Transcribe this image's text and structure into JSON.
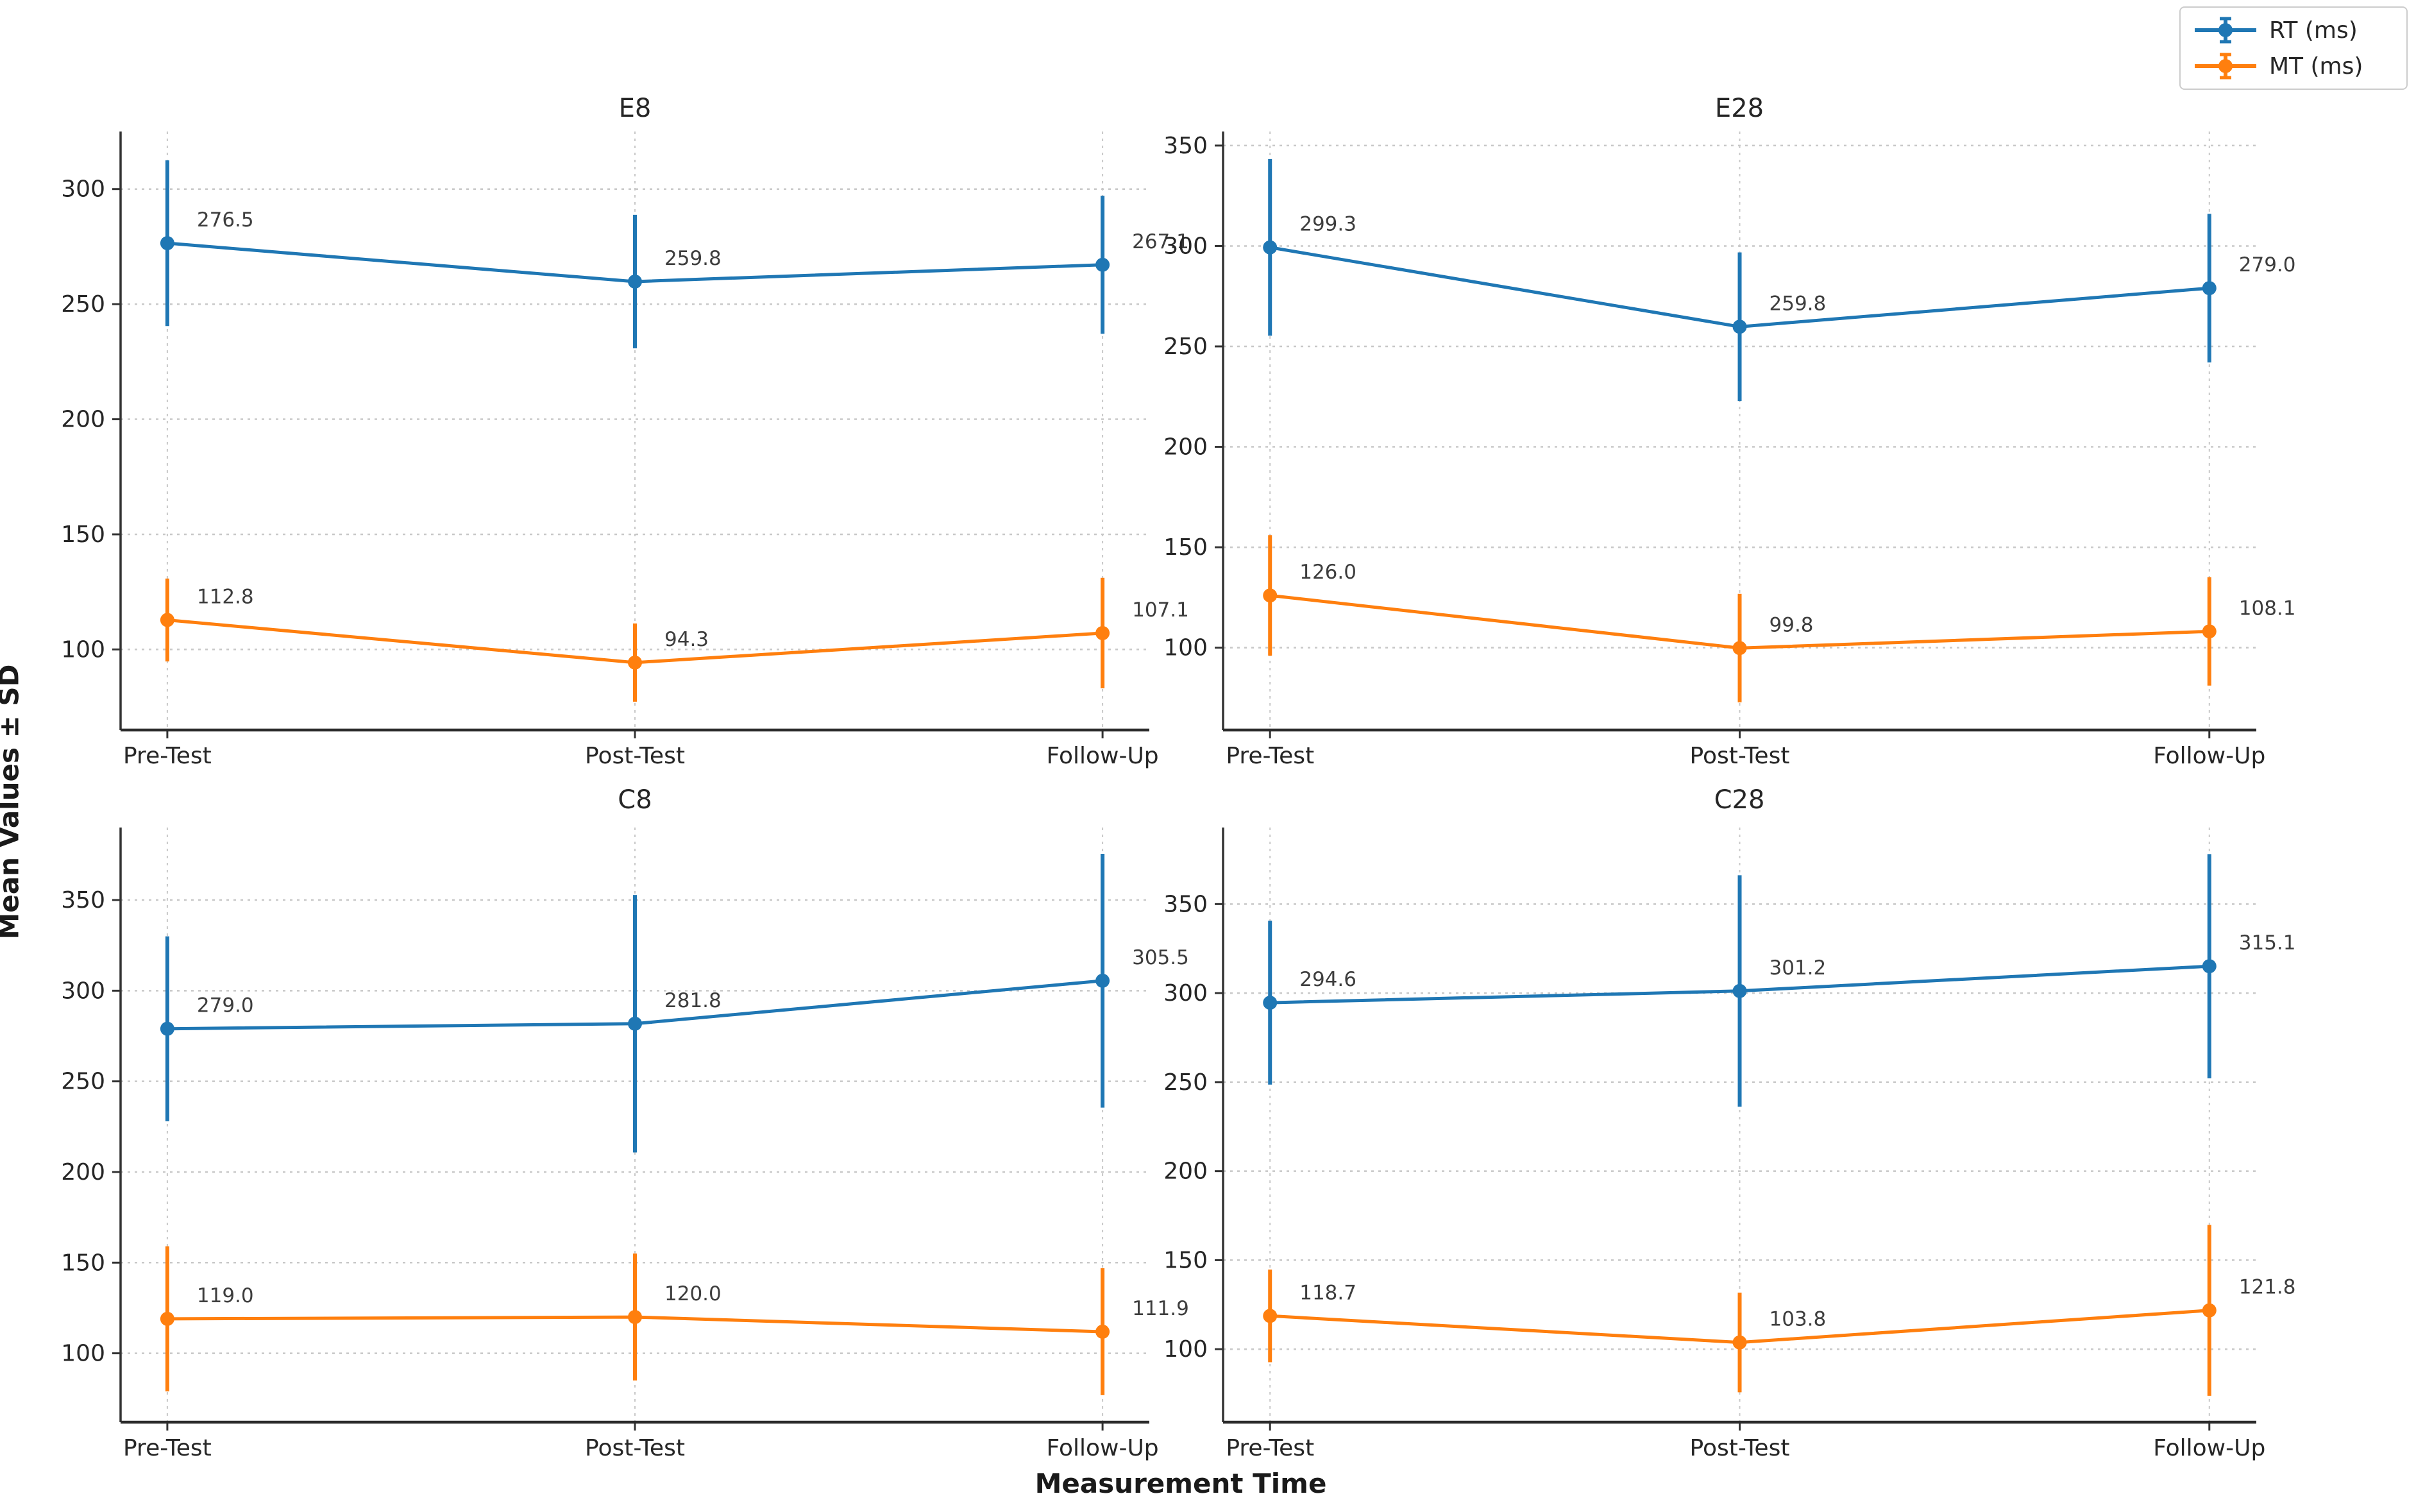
{
  "figure": {
    "xlabel": "Measurement Time",
    "ylabel": "Mean Values ± SD",
    "background": "#ffffff",
    "colors": {
      "rt": "#1f77b4",
      "mt": "#ff7f0e",
      "grid": "#c8c8c8",
      "spine": "#333333",
      "tick_text": "#262626",
      "value_text": "#3d3d3d"
    }
  },
  "legend": {
    "items": [
      {
        "label": "RT (ms)",
        "color": "#1f77b4"
      },
      {
        "label": "MT (ms)",
        "color": "#ff7f0e"
      }
    ]
  },
  "chart_data": [
    {
      "type": "line",
      "title": "E8",
      "categories": [
        "Pre-Test",
        "Post-Test",
        "Follow-Up"
      ],
      "series": [
        {
          "name": "RT (ms)",
          "color": "#1f77b4",
          "values": [
            276.5,
            259.8,
            267.1
          ],
          "sd": [
            36,
            29,
            30
          ]
        },
        {
          "name": "MT (ms)",
          "color": "#ff7f0e",
          "values": [
            112.8,
            94.3,
            107.1
          ],
          "sd": [
            18,
            17,
            24
          ]
        }
      ],
      "yticks": [
        100,
        150,
        200,
        250,
        300
      ],
      "ylim": [
        65,
        325
      ],
      "grid": "dashed",
      "legend_position": "figure-upper-right"
    },
    {
      "type": "line",
      "title": "E28",
      "categories": [
        "Pre-Test",
        "Post-Test",
        "Follow-Up"
      ],
      "series": [
        {
          "name": "RT (ms)",
          "color": "#1f77b4",
          "values": [
            299.3,
            259.8,
            279.0
          ],
          "sd": [
            44,
            37,
            37
          ]
        },
        {
          "name": "MT (ms)",
          "color": "#ff7f0e",
          "values": [
            126.0,
            99.8,
            108.1
          ],
          "sd": [
            30,
            27,
            27
          ]
        }
      ],
      "yticks": [
        100,
        150,
        200,
        250,
        300,
        350
      ],
      "ylim": [
        59,
        357
      ],
      "grid": "dashed",
      "legend_position": "figure-upper-right"
    },
    {
      "type": "line",
      "title": "C8",
      "categories": [
        "Pre-Test",
        "Post-Test",
        "Follow-Up"
      ],
      "series": [
        {
          "name": "RT (ms)",
          "color": "#1f77b4",
          "values": [
            279.0,
            281.8,
            305.5
          ],
          "sd": [
            51,
            71,
            70
          ]
        },
        {
          "name": "MT (ms)",
          "color": "#ff7f0e",
          "values": [
            119.0,
            120.0,
            111.9
          ],
          "sd": [
            40,
            35,
            35
          ]
        }
      ],
      "yticks": [
        100,
        150,
        200,
        250,
        300,
        350
      ],
      "ylim": [
        62,
        390
      ],
      "grid": "dashed",
      "legend_position": "figure-upper-right"
    },
    {
      "type": "line",
      "title": "C28",
      "categories": [
        "Pre-Test",
        "Post-Test",
        "Follow-Up"
      ],
      "series": [
        {
          "name": "RT (ms)",
          "color": "#1f77b4",
          "values": [
            294.6,
            301.2,
            315.1
          ],
          "sd": [
            46,
            65,
            63
          ]
        },
        {
          "name": "MT (ms)",
          "color": "#ff7f0e",
          "values": [
            118.7,
            103.8,
            121.8
          ],
          "sd": [
            26,
            28,
            48
          ]
        }
      ],
      "yticks": [
        100,
        150,
        200,
        250,
        300,
        350
      ],
      "ylim": [
        59,
        393
      ],
      "grid": "dashed",
      "legend_position": "figure-upper-right"
    }
  ]
}
